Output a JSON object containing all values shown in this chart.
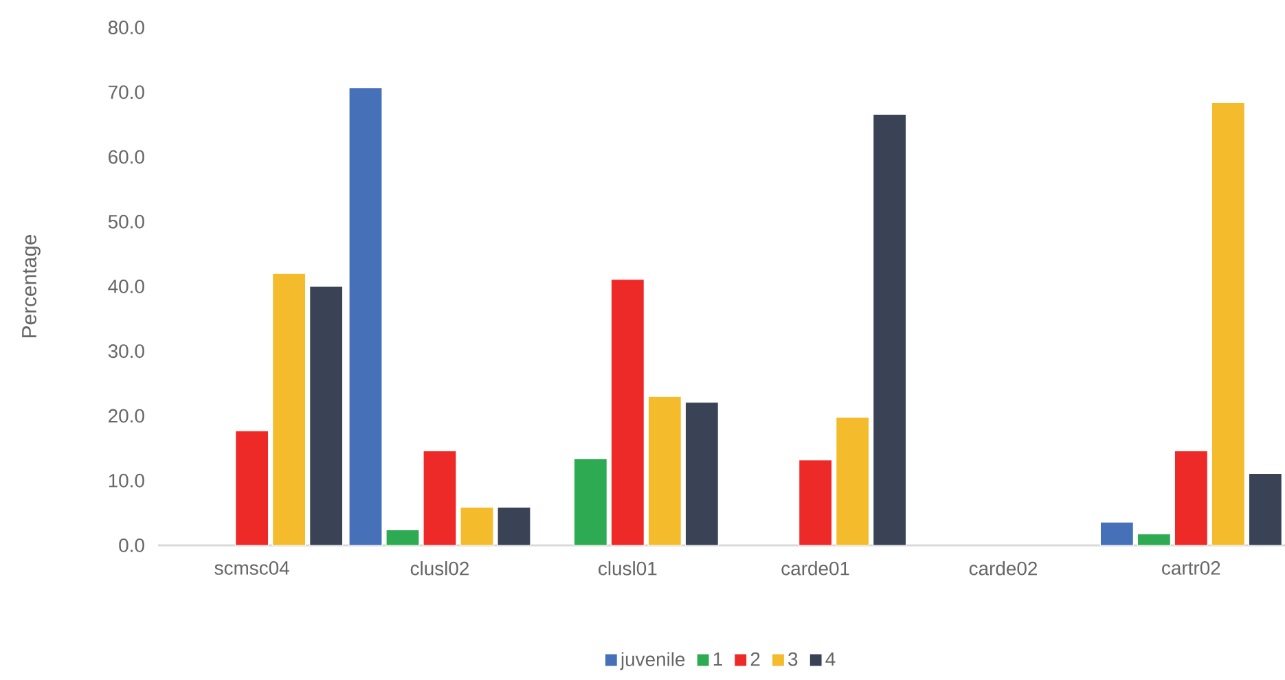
{
  "chart_data": {
    "type": "bar",
    "ylabel": "Percentage",
    "categories": [
      "scmsc04",
      "clusl02",
      "clusl01",
      "carde01",
      "carde02",
      "cartr02"
    ],
    "series": [
      {
        "name": "juvenile",
        "color": "#4670b8",
        "values": [
          null,
          70.7,
          null,
          null,
          null,
          3.6
        ]
      },
      {
        "name": "1",
        "color": "#2eaa52",
        "values": [
          null,
          2.4,
          13.4,
          null,
          null,
          1.8
        ]
      },
      {
        "name": "2",
        "color": "#ee2a28",
        "values": [
          17.7,
          14.6,
          41.1,
          13.2,
          null,
          14.6
        ]
      },
      {
        "name": "3",
        "color": "#f4bc2c",
        "values": [
          42.0,
          5.9,
          23.0,
          19.8,
          null,
          68.4
        ]
      },
      {
        "name": "4",
        "color": "#3a4356",
        "values": [
          40.0,
          5.9,
          22.1,
          66.6,
          null,
          11.1
        ]
      }
    ],
    "ylim": [
      0,
      80
    ],
    "yticks": [
      {
        "value": 0,
        "label": "0.0"
      },
      {
        "value": 10,
        "label": "10.0"
      },
      {
        "value": 20,
        "label": "20.0"
      },
      {
        "value": 30,
        "label": "30.0"
      },
      {
        "value": 40,
        "label": "40.0"
      },
      {
        "value": 50,
        "label": "50.0"
      },
      {
        "value": 60,
        "label": "60.0"
      },
      {
        "value": 70,
        "label": "70.0"
      },
      {
        "value": 80,
        "label": "80.0"
      }
    ],
    "grid": false,
    "legend": "bottom"
  }
}
